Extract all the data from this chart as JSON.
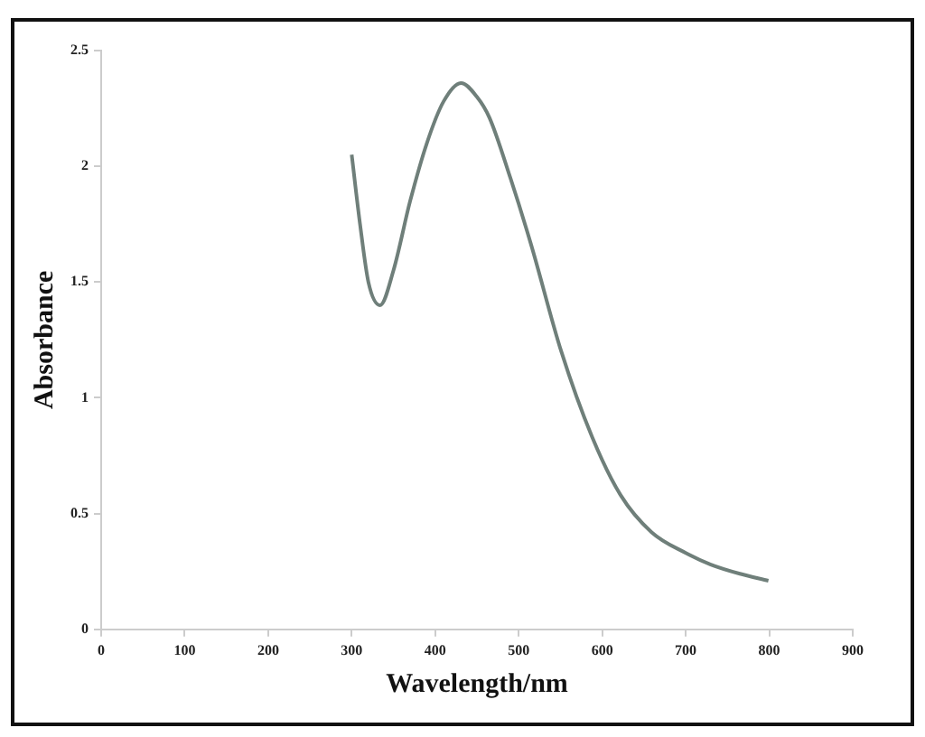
{
  "chart_data": {
    "type": "line",
    "xlabel": "Wavelength/nm",
    "ylabel": "Absorbance",
    "x": [
      300,
      310,
      320,
      334,
      350,
      370,
      390,
      410,
      431,
      450,
      465,
      490,
      515,
      551,
      588,
      622,
      659,
      700,
      730,
      765,
      799
    ],
    "series": [
      {
        "color": "#6f7f7a",
        "values": [
          2.05,
          1.75,
          1.5,
          1.4,
          1.55,
          1.85,
          2.1,
          2.28,
          2.36,
          2.3,
          2.21,
          1.95,
          1.66,
          1.2,
          0.83,
          0.58,
          0.42,
          0.33,
          0.28,
          0.24,
          0.21
        ]
      }
    ],
    "xlim": [
      0,
      900
    ],
    "xticks": [
      0,
      100,
      200,
      300,
      400,
      500,
      600,
      700,
      800,
      900
    ],
    "ylim": [
      0,
      2.5
    ],
    "yticks": [
      0,
      0.5,
      1,
      1.5,
      2,
      2.5
    ],
    "grid": false,
    "legend": false,
    "marker": "none",
    "line_style": "solid"
  }
}
